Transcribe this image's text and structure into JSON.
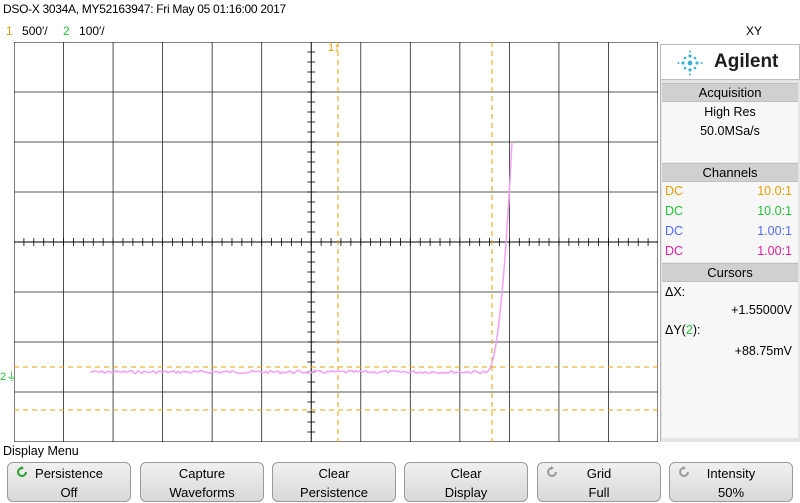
{
  "header": {
    "title": "DSO-X 3034A, MY52163947: Fri May 05 01:16:00 2017",
    "mode": "XY",
    "ch1_num": "1",
    "ch1_scale": "500′/",
    "ch2_num": "2",
    "ch2_scale": "100′/"
  },
  "screen": {
    "ch1_marker": "1",
    "ch2_marker": "2",
    "trace_color": "#f2a0f2",
    "cursor_color": "#e8a000",
    "trace": {
      "x_cursor_label": "ΔX",
      "y_cursor_label": "ΔY"
    }
  },
  "panel": {
    "brand": "Agilent",
    "acquisition": {
      "heading": "Acquisition",
      "mode": "High Res",
      "rate": "50.0MSa/s"
    },
    "channels": {
      "heading": "Channels",
      "rows": [
        {
          "coupling": "DC",
          "probe": "10.0:1",
          "color": "#e8a000"
        },
        {
          "coupling": "DC",
          "probe": "10.0:1",
          "color": "#23c23c"
        },
        {
          "coupling": "DC",
          "probe": "1.00:1",
          "color": "#4f6cf0"
        },
        {
          "coupling": "DC",
          "probe": "1.00:1",
          "color": "#e020a0"
        }
      ]
    },
    "cursors": {
      "heading": "Cursors",
      "dx_label": "ΔX:",
      "dx_value": "+1.55000V",
      "dy_label_pre": "ΔY(",
      "dy_label_ch": "2",
      "dy_label_post": "):",
      "dy_value": "+88.75mV"
    }
  },
  "menu": {
    "title": "Display Menu",
    "softkeys": [
      {
        "line1": "Persistence",
        "line2": "Off",
        "icon": "rotate-icon-green"
      },
      {
        "line1": "Capture",
        "line2": "Waveforms",
        "icon": ""
      },
      {
        "line1": "Clear",
        "line2": "Persistence",
        "icon": ""
      },
      {
        "line1": "Clear",
        "line2": "Display",
        "icon": ""
      },
      {
        "line1": "Grid",
        "line2": "Full",
        "icon": "rotate-icon-gray"
      },
      {
        "line1": "Intensity",
        "line2": "50%",
        "icon": "rotate-icon-gray"
      }
    ]
  }
}
